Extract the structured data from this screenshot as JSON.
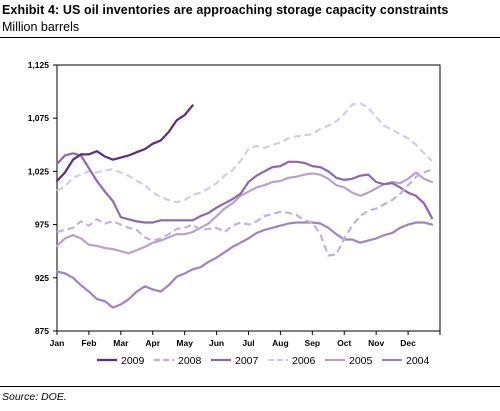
{
  "header": {
    "title": "Exhibit 4: US oil inventories are approaching storage capacity constraints",
    "subtitle": "Million barrels"
  },
  "footer": {
    "source": "Source: DOE."
  },
  "chart_data": {
    "type": "line",
    "title": "Exhibit 4: US oil inventories are approaching storage capacity constraints",
    "ylabel": "Million barrels",
    "xlabel": "",
    "ylim": [
      875,
      1125
    ],
    "yticks": [
      875,
      925,
      975,
      1025,
      1075,
      1125
    ],
    "ytick_labels": [
      "875",
      "925",
      "975",
      "1,025",
      "1,075",
      "1,125"
    ],
    "xlim": [
      0,
      12
    ],
    "months": [
      "Jan",
      "Feb",
      "Mar",
      "Apr",
      "May",
      "Jun",
      "Jul",
      "Aug",
      "Sep",
      "Oct",
      "Nov",
      "Dec"
    ],
    "grid": false,
    "legend_position": "bottom",
    "series": [
      {
        "name": "2009",
        "color": "#5b2c7e",
        "dash": "solid",
        "x": [
          0,
          0.25,
          0.5,
          0.75,
          1.0,
          1.25,
          1.5,
          1.75,
          2.0,
          2.25,
          2.5,
          2.75,
          3.0,
          3.25,
          3.5,
          3.75,
          4.0,
          4.25
        ],
        "y": [
          1016,
          1024,
          1036,
          1041,
          1041,
          1044,
          1039,
          1036,
          1038,
          1040,
          1043,
          1046,
          1051,
          1054,
          1062,
          1073,
          1078,
          1087
        ]
      },
      {
        "name": "2008",
        "color": "#c4b1d6",
        "dash": "dash",
        "x": [
          0,
          0.25,
          0.5,
          0.75,
          1.0,
          1.25,
          1.5,
          1.75,
          2.0,
          2.25,
          2.5,
          2.75,
          3.0,
          3.25,
          3.5,
          3.75,
          4.0,
          4.25,
          4.5,
          4.75,
          5.0,
          5.25,
          5.5,
          5.75,
          6.0,
          6.25,
          6.5,
          6.75,
          7.0,
          7.25,
          7.5,
          7.75,
          8.0,
          8.25,
          8.5,
          8.75,
          9.0,
          9.25,
          9.5,
          9.75,
          10.0,
          10.25,
          10.5,
          10.75,
          11.0,
          11.25,
          11.5,
          11.75
        ],
        "y": [
          968,
          970,
          972,
          978,
          974,
          980,
          976,
          978,
          975,
          972,
          970,
          963,
          960,
          962,
          966,
          971,
          972,
          975,
          970,
          971,
          972,
          968,
          974,
          977,
          975,
          978,
          983,
          985,
          987,
          986,
          984,
          979,
          977,
          966,
          946,
          947,
          962,
          974,
          983,
          988,
          990,
          994,
          998,
          1004,
          1012,
          1020,
          1024,
          1027
        ]
      },
      {
        "name": "2007",
        "color": "#8a68b4",
        "dash": "solid",
        "x": [
          0,
          0.25,
          0.5,
          0.75,
          1.0,
          1.25,
          1.5,
          1.75,
          2.0,
          2.25,
          2.5,
          2.75,
          3.0,
          3.25,
          3.5,
          3.75,
          4.0,
          4.25,
          4.5,
          4.75,
          5.0,
          5.25,
          5.5,
          5.75,
          6.0,
          6.25,
          6.5,
          6.75,
          7.0,
          7.25,
          7.5,
          7.75,
          8.0,
          8.25,
          8.5,
          8.75,
          9.0,
          9.25,
          9.5,
          9.75,
          10.0,
          10.25,
          10.5,
          10.75,
          11.0,
          11.25,
          11.5,
          11.75
        ],
        "y": [
          1032,
          1040,
          1042,
          1040,
          1028,
          1016,
          1006,
          997,
          982,
          980,
          978,
          977,
          977,
          979,
          979,
          979,
          979,
          979,
          983,
          986,
          991,
          995,
          999,
          1004,
          1015,
          1021,
          1025,
          1029,
          1030,
          1034,
          1034,
          1033,
          1030,
          1029,
          1025,
          1019,
          1017,
          1018,
          1021,
          1022,
          1015,
          1013,
          1014,
          1010,
          1005,
          1002,
          995,
          981
        ]
      },
      {
        "name": "2006",
        "color": "#d6cbe5",
        "dash": "dash",
        "x": [
          0,
          0.25,
          0.5,
          0.75,
          1.0,
          1.25,
          1.5,
          1.75,
          2.0,
          2.25,
          2.5,
          2.75,
          3.0,
          3.25,
          3.5,
          3.75,
          4.0,
          4.25,
          4.5,
          4.75,
          5.0,
          5.25,
          5.5,
          5.75,
          6.0,
          6.25,
          6.5,
          6.75,
          7.0,
          7.25,
          7.5,
          7.75,
          8.0,
          8.25,
          8.5,
          8.75,
          9.0,
          9.25,
          9.5,
          9.75,
          10.0,
          10.25,
          10.5,
          10.75,
          11.0,
          11.25,
          11.5,
          11.75
        ],
        "y": [
          1007,
          1011,
          1019,
          1022,
          1025,
          1024,
          1026,
          1027,
          1024,
          1021,
          1016,
          1012,
          1005,
          1001,
          998,
          996,
          998,
          1003,
          1005,
          1009,
          1014,
          1021,
          1026,
          1035,
          1046,
          1049,
          1047,
          1050,
          1052,
          1056,
          1058,
          1059,
          1060,
          1065,
          1068,
          1072,
          1079,
          1088,
          1089,
          1085,
          1076,
          1068,
          1064,
          1060,
          1056,
          1050,
          1042,
          1035
        ]
      },
      {
        "name": "2005",
        "color": "#b8a2cd",
        "dash": "solid",
        "x": [
          0,
          0.25,
          0.5,
          0.75,
          1.0,
          1.25,
          1.5,
          1.75,
          2.0,
          2.25,
          2.5,
          2.75,
          3.0,
          3.25,
          3.5,
          3.75,
          4.0,
          4.25,
          4.5,
          4.75,
          5.0,
          5.25,
          5.5,
          5.75,
          6.0,
          6.25,
          6.5,
          6.75,
          7.0,
          7.25,
          7.5,
          7.75,
          8.0,
          8.25,
          8.5,
          8.75,
          9.0,
          9.25,
          9.5,
          9.75,
          10.0,
          10.25,
          10.5,
          10.75,
          11.0,
          11.25,
          11.5,
          11.75
        ],
        "y": [
          955,
          962,
          965,
          962,
          956,
          955,
          953,
          952,
          950,
          948,
          951,
          954,
          958,
          960,
          963,
          966,
          966,
          968,
          972,
          976,
          983,
          990,
          995,
          1002,
          1006,
          1010,
          1012,
          1015,
          1016,
          1019,
          1020,
          1022,
          1023,
          1022,
          1018,
          1012,
          1010,
          1005,
          1002,
          1005,
          1009,
          1013,
          1015,
          1014,
          1018,
          1024,
          1018,
          1015
        ]
      },
      {
        "name": "2004",
        "color": "#9e83c2",
        "dash": "solid",
        "x": [
          0,
          0.25,
          0.5,
          0.75,
          1.0,
          1.25,
          1.5,
          1.75,
          2.0,
          2.25,
          2.5,
          2.75,
          3.0,
          3.25,
          3.5,
          3.75,
          4.0,
          4.25,
          4.5,
          4.75,
          5.0,
          5.25,
          5.5,
          5.75,
          6.0,
          6.25,
          6.5,
          6.75,
          7.0,
          7.25,
          7.5,
          7.75,
          8.0,
          8.25,
          8.5,
          8.75,
          9.0,
          9.25,
          9.5,
          9.75,
          10.0,
          10.25,
          10.5,
          10.75,
          11.0,
          11.25,
          11.5,
          11.75
        ],
        "y": [
          931,
          929,
          925,
          918,
          912,
          905,
          903,
          897,
          900,
          905,
          912,
          917,
          914,
          912,
          918,
          926,
          929,
          933,
          935,
          940,
          944,
          949,
          954,
          958,
          962,
          967,
          970,
          972,
          974,
          976,
          977,
          977,
          977,
          976,
          972,
          966,
          961,
          961,
          958,
          960,
          962,
          965,
          967,
          972,
          975,
          977,
          977,
          975
        ]
      }
    ]
  }
}
